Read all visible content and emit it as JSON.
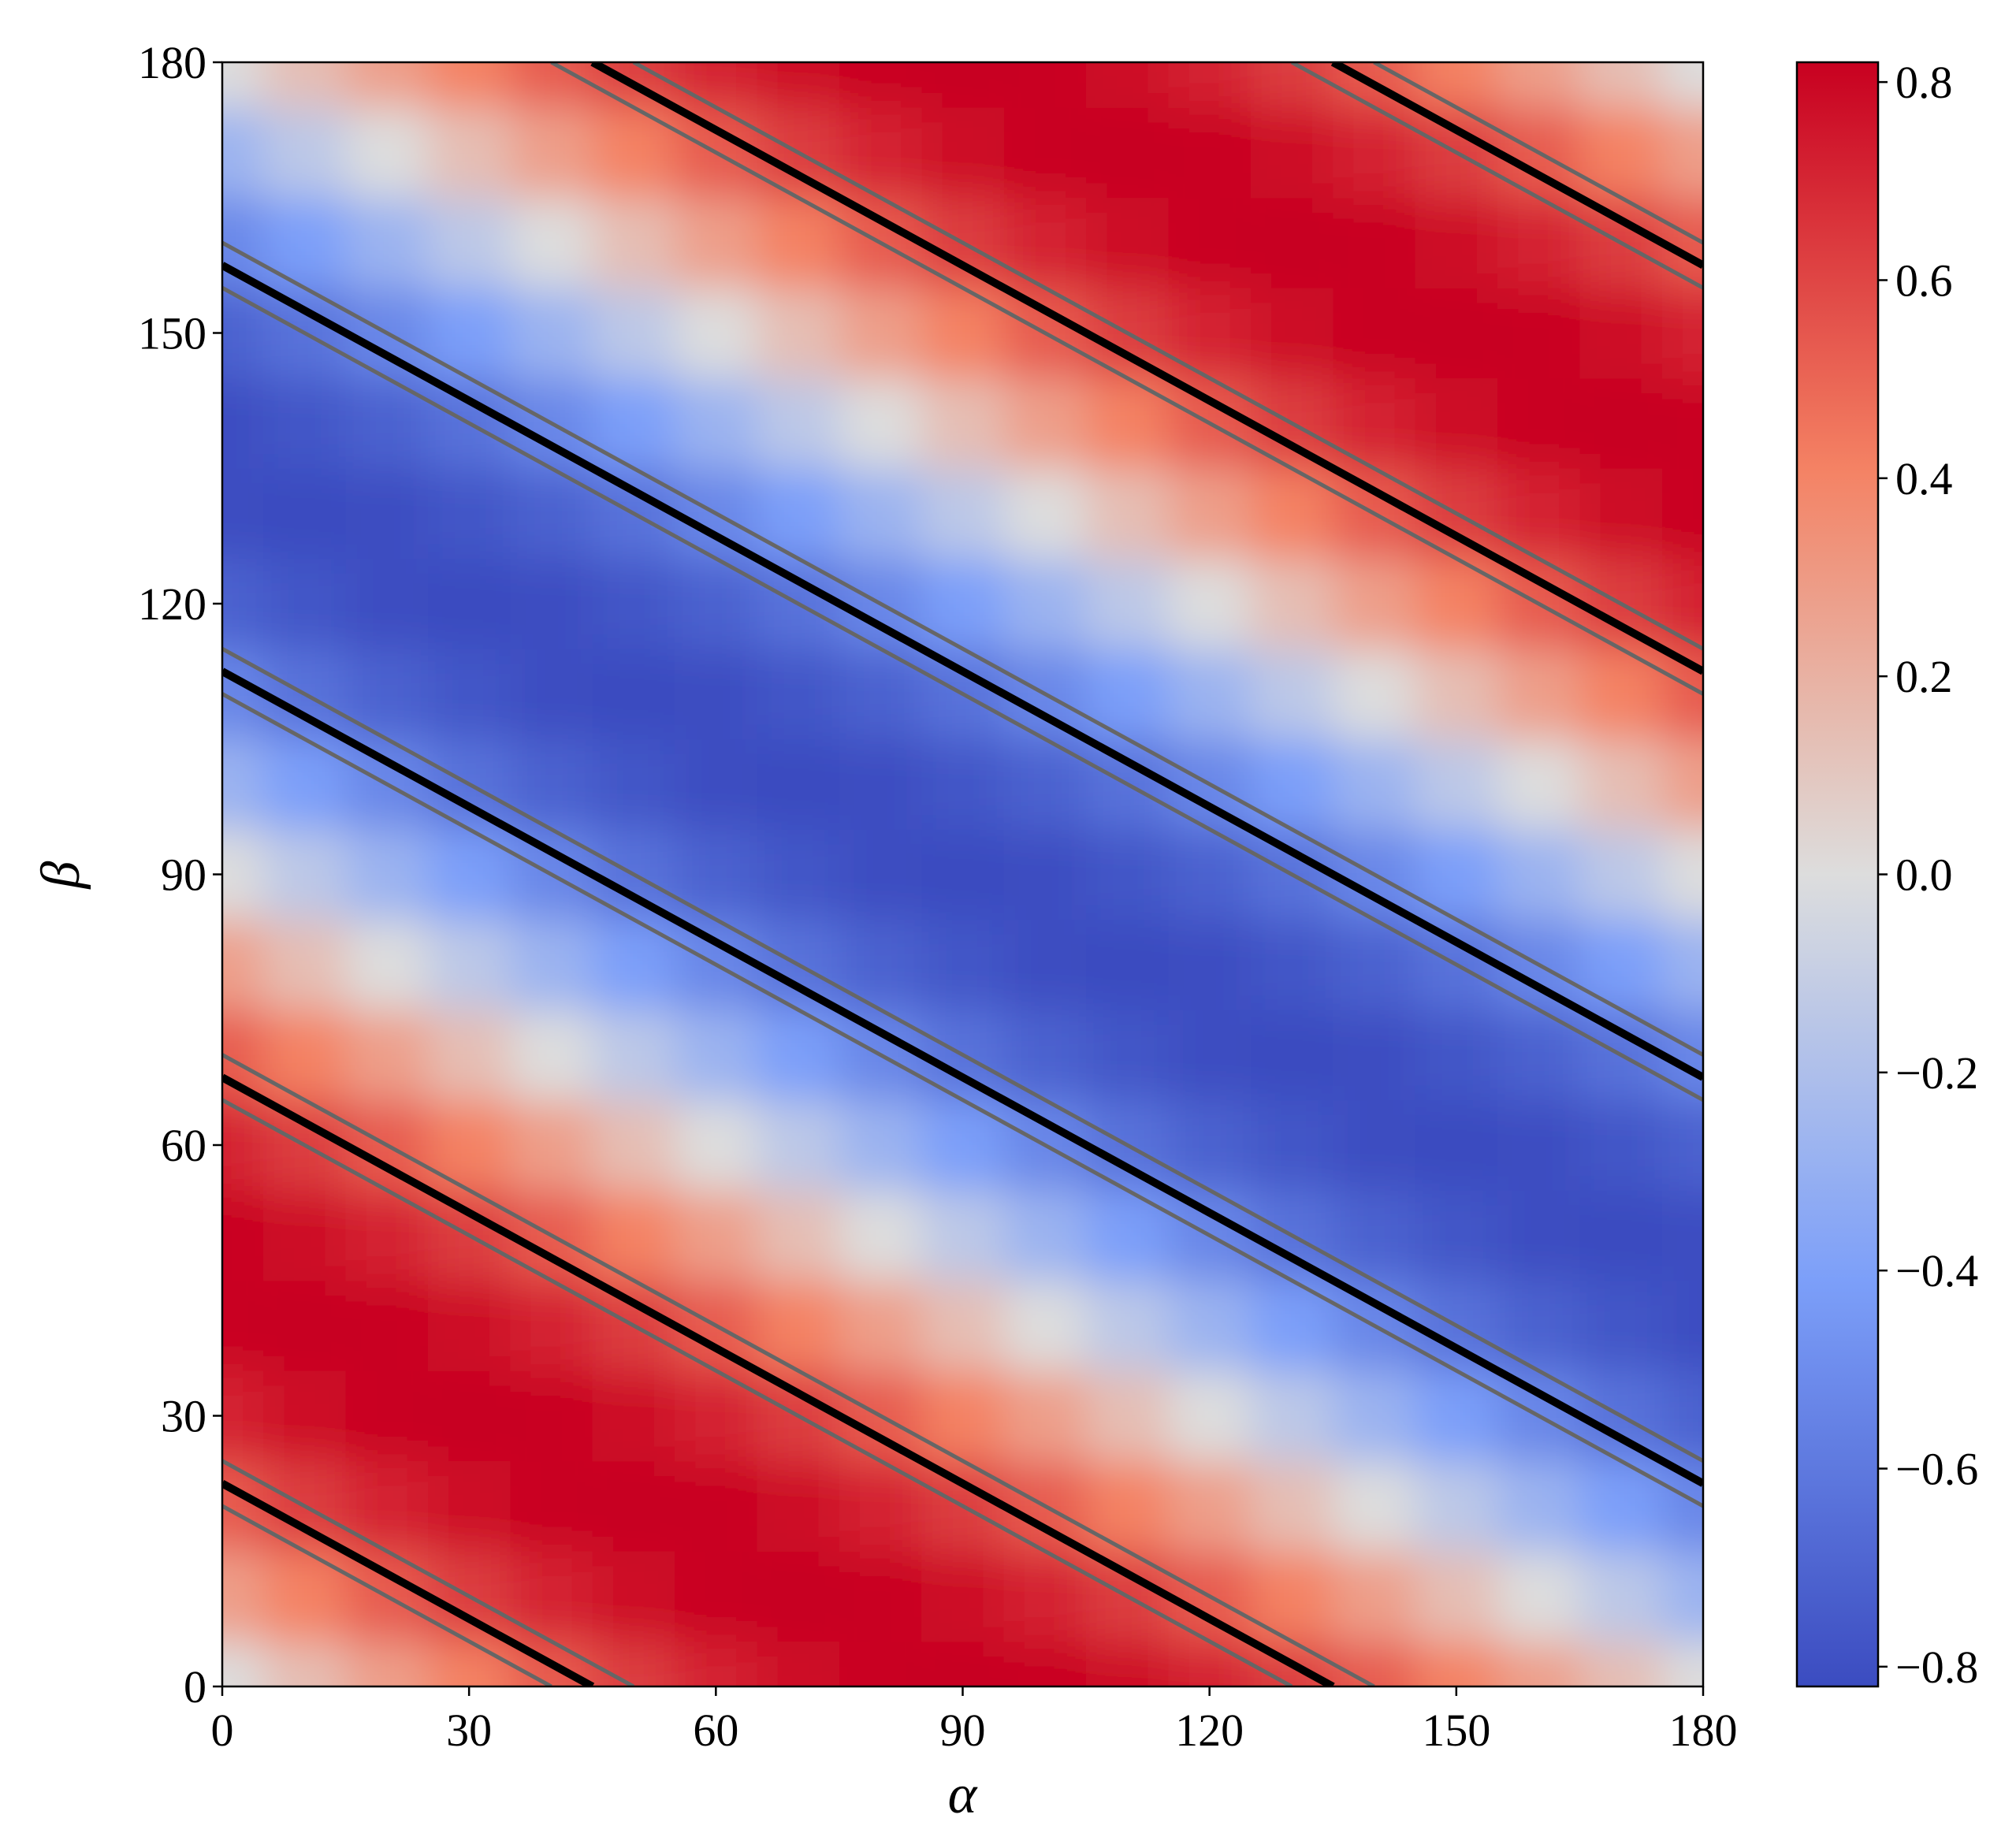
{
  "chart_data": {
    "type": "heatmap",
    "xlabel": "α",
    "ylabel": "β",
    "xlim": [
      0,
      180
    ],
    "ylim": [
      0,
      180
    ],
    "xticks": [
      0,
      30,
      60,
      90,
      120,
      150,
      180
    ],
    "yticks": [
      0,
      30,
      60,
      90,
      120,
      150,
      180
    ],
    "colormap": "coolwarm",
    "zlim": [
      -0.82,
      0.82
    ],
    "colorbar_ticks": [
      {
        "value": -0.8,
        "label": "−0.8"
      },
      {
        "value": -0.6,
        "label": "−0.6"
      },
      {
        "value": -0.4,
        "label": "−0.4"
      },
      {
        "value": -0.2,
        "label": "−0.2"
      },
      {
        "value": 0,
        "label": "0.0"
      },
      0.2,
      0.4,
      0.6,
      0.8
    ],
    "x": [
      0,
      10,
      20,
      30,
      40,
      50,
      60,
      70,
      80,
      90,
      100,
      110,
      120,
      130,
      140,
      150,
      160,
      170,
      180
    ],
    "y": [
      0,
      10,
      20,
      30,
      40,
      50,
      60,
      70,
      80,
      90,
      100,
      110,
      120,
      130,
      140,
      150,
      160,
      170,
      180
    ],
    "z": [
      [
        0,
        0.14,
        0.28,
        0.41,
        0.53,
        0.63,
        0.71,
        0.77,
        0.81,
        0.82,
        0.81,
        0.77,
        0.71,
        0.63,
        0.53,
        0.41,
        0.28,
        0.14,
        0
      ],
      [
        0.28,
        0.41,
        0.53,
        0.63,
        0.71,
        0.77,
        0.81,
        0.82,
        0.81,
        0.77,
        0.71,
        0.63,
        0.53,
        0.41,
        0.28,
        0.14,
        0,
        -0.14,
        -0.28
      ],
      [
        0.53,
        0.63,
        0.71,
        0.77,
        0.81,
        0.82,
        0.81,
        0.77,
        0.71,
        0.63,
        0.53,
        0.41,
        0.28,
        0.14,
        0,
        -0.14,
        -0.28,
        -0.41,
        -0.53
      ],
      [
        0.71,
        0.77,
        0.81,
        0.82,
        0.81,
        0.77,
        0.71,
        0.63,
        0.53,
        0.41,
        0.28,
        0.14,
        0,
        -0.14,
        -0.28,
        -0.41,
        -0.53,
        -0.63,
        -0.71
      ],
      [
        0.81,
        0.82,
        0.81,
        0.77,
        0.71,
        0.63,
        0.53,
        0.41,
        0.28,
        0.14,
        0,
        -0.14,
        -0.28,
        -0.41,
        -0.53,
        -0.63,
        -0.71,
        -0.77,
        -0.81
      ],
      [
        0.81,
        0.77,
        0.71,
        0.63,
        0.53,
        0.41,
        0.28,
        0.14,
        0,
        -0.14,
        -0.28,
        -0.41,
        -0.53,
        -0.63,
        -0.71,
        -0.77,
        -0.81,
        -0.82,
        -0.81
      ],
      [
        0.71,
        0.63,
        0.53,
        0.41,
        0.28,
        0.14,
        0,
        -0.14,
        -0.28,
        -0.41,
        -0.53,
        -0.63,
        -0.71,
        -0.77,
        -0.81,
        -0.82,
        -0.81,
        -0.77,
        -0.71
      ],
      [
        0.53,
        0.41,
        0.28,
        0.14,
        0,
        -0.14,
        -0.28,
        -0.41,
        -0.53,
        -0.63,
        -0.71,
        -0.77,
        -0.81,
        -0.82,
        -0.81,
        -0.77,
        -0.71,
        -0.63,
        -0.53
      ],
      [
        0.28,
        0.14,
        0,
        -0.14,
        -0.28,
        -0.41,
        -0.53,
        -0.63,
        -0.71,
        -0.77,
        -0.81,
        -0.82,
        -0.81,
        -0.77,
        -0.71,
        -0.63,
        -0.53,
        -0.41,
        -0.28
      ],
      [
        0,
        -0.14,
        -0.28,
        -0.41,
        -0.53,
        -0.63,
        -0.71,
        -0.77,
        -0.81,
        -0.82,
        -0.81,
        -0.77,
        -0.71,
        -0.63,
        -0.53,
        -0.41,
        -0.28,
        -0.14,
        0
      ],
      [
        -0.28,
        -0.41,
        -0.53,
        -0.63,
        -0.71,
        -0.77,
        -0.81,
        -0.82,
        -0.81,
        -0.77,
        -0.71,
        -0.63,
        -0.53,
        -0.41,
        -0.28,
        -0.14,
        0,
        0.14,
        0.28
      ],
      [
        -0.53,
        -0.63,
        -0.71,
        -0.77,
        -0.81,
        -0.82,
        -0.81,
        -0.77,
        -0.71,
        -0.63,
        -0.53,
        -0.41,
        -0.28,
        -0.14,
        0,
        0.14,
        0.28,
        0.41,
        0.53
      ],
      [
        -0.71,
        -0.77,
        -0.81,
        -0.82,
        -0.81,
        -0.77,
        -0.71,
        -0.63,
        -0.53,
        -0.41,
        -0.28,
        -0.14,
        0,
        0.14,
        0.28,
        0.41,
        0.53,
        0.63,
        0.71
      ],
      [
        -0.81,
        -0.82,
        -0.81,
        -0.77,
        -0.71,
        -0.63,
        -0.53,
        -0.41,
        -0.28,
        -0.14,
        0,
        0.14,
        0.28,
        0.41,
        0.53,
        0.63,
        0.71,
        0.77,
        0.81
      ],
      [
        -0.81,
        -0.77,
        -0.71,
        -0.63,
        -0.53,
        -0.41,
        -0.28,
        -0.14,
        0,
        0.14,
        0.28,
        0.41,
        0.53,
        0.63,
        0.71,
        0.77,
        0.81,
        0.82,
        0.81
      ],
      [
        -0.71,
        -0.63,
        -0.53,
        -0.41,
        -0.28,
        -0.14,
        0,
        0.14,
        0.28,
        0.41,
        0.53,
        0.63,
        0.71,
        0.77,
        0.81,
        0.82,
        0.81,
        0.77,
        0.71
      ],
      [
        -0.53,
        -0.41,
        -0.28,
        -0.14,
        0,
        0.14,
        0.28,
        0.41,
        0.53,
        0.63,
        0.71,
        0.77,
        0.81,
        0.82,
        0.81,
        0.77,
        0.71,
        0.63,
        0.53
      ],
      [
        -0.28,
        -0.14,
        0,
        0.14,
        0.28,
        0.41,
        0.53,
        0.63,
        0.71,
        0.77,
        0.81,
        0.82,
        0.81,
        0.77,
        0.71,
        0.63,
        0.53,
        0.41,
        0.28
      ],
      [
        0,
        0.14,
        0.28,
        0.41,
        0.53,
        0.63,
        0.71,
        0.77,
        0.81,
        0.82,
        0.81,
        0.77,
        0.71,
        0.63,
        0.53,
        0.41,
        0.28,
        0.14,
        0
      ]
    ],
    "contours": [
      {
        "color": "#666666",
        "x": [
          0,
          40
        ],
        "y": [
          20,
          0
        ]
      },
      {
        "color": "#000000",
        "x": [
          0,
          45
        ],
        "y": [
          22.5,
          0
        ]
      },
      {
        "color": "#666666",
        "x": [
          0,
          50
        ],
        "y": [
          25,
          0
        ]
      },
      {
        "color": "#666666",
        "x": [
          0,
          130
        ],
        "y": [
          65,
          0
        ]
      },
      {
        "color": "#000000",
        "x": [
          0,
          135
        ],
        "y": [
          67.5,
          0
        ]
      },
      {
        "color": "#666666",
        "x": [
          0,
          140
        ],
        "y": [
          70,
          0
        ]
      },
      {
        "color": "#666666",
        "x": [
          0,
          180
        ],
        "y": [
          110,
          20
        ]
      },
      {
        "color": "#000000",
        "x": [
          0,
          180
        ],
        "y": [
          112.5,
          22.5
        ]
      },
      {
        "color": "#666666",
        "x": [
          0,
          180
        ],
        "y": [
          115,
          25
        ]
      },
      {
        "color": "#666666",
        "x": [
          0,
          180
        ],
        "y": [
          155,
          65
        ]
      },
      {
        "color": "#000000",
        "x": [
          0,
          180
        ],
        "y": [
          157.5,
          67.5
        ]
      },
      {
        "color": "#666666",
        "x": [
          0,
          180
        ],
        "y": [
          160,
          70
        ]
      },
      {
        "color": "#666666",
        "x": [
          40,
          180
        ],
        "y": [
          180,
          110
        ]
      },
      {
        "color": "#000000",
        "x": [
          45,
          180
        ],
        "y": [
          180,
          112.5
        ]
      },
      {
        "color": "#666666",
        "x": [
          50,
          180
        ],
        "y": [
          180,
          115
        ]
      },
      {
        "color": "#666666",
        "x": [
          130,
          180
        ],
        "y": [
          180,
          155
        ]
      },
      {
        "color": "#000000",
        "x": [
          135,
          180
        ],
        "y": [
          180,
          157.5
        ]
      },
      {
        "color": "#666666",
        "x": [
          140,
          180
        ],
        "y": [
          180,
          160
        ]
      }
    ]
  }
}
